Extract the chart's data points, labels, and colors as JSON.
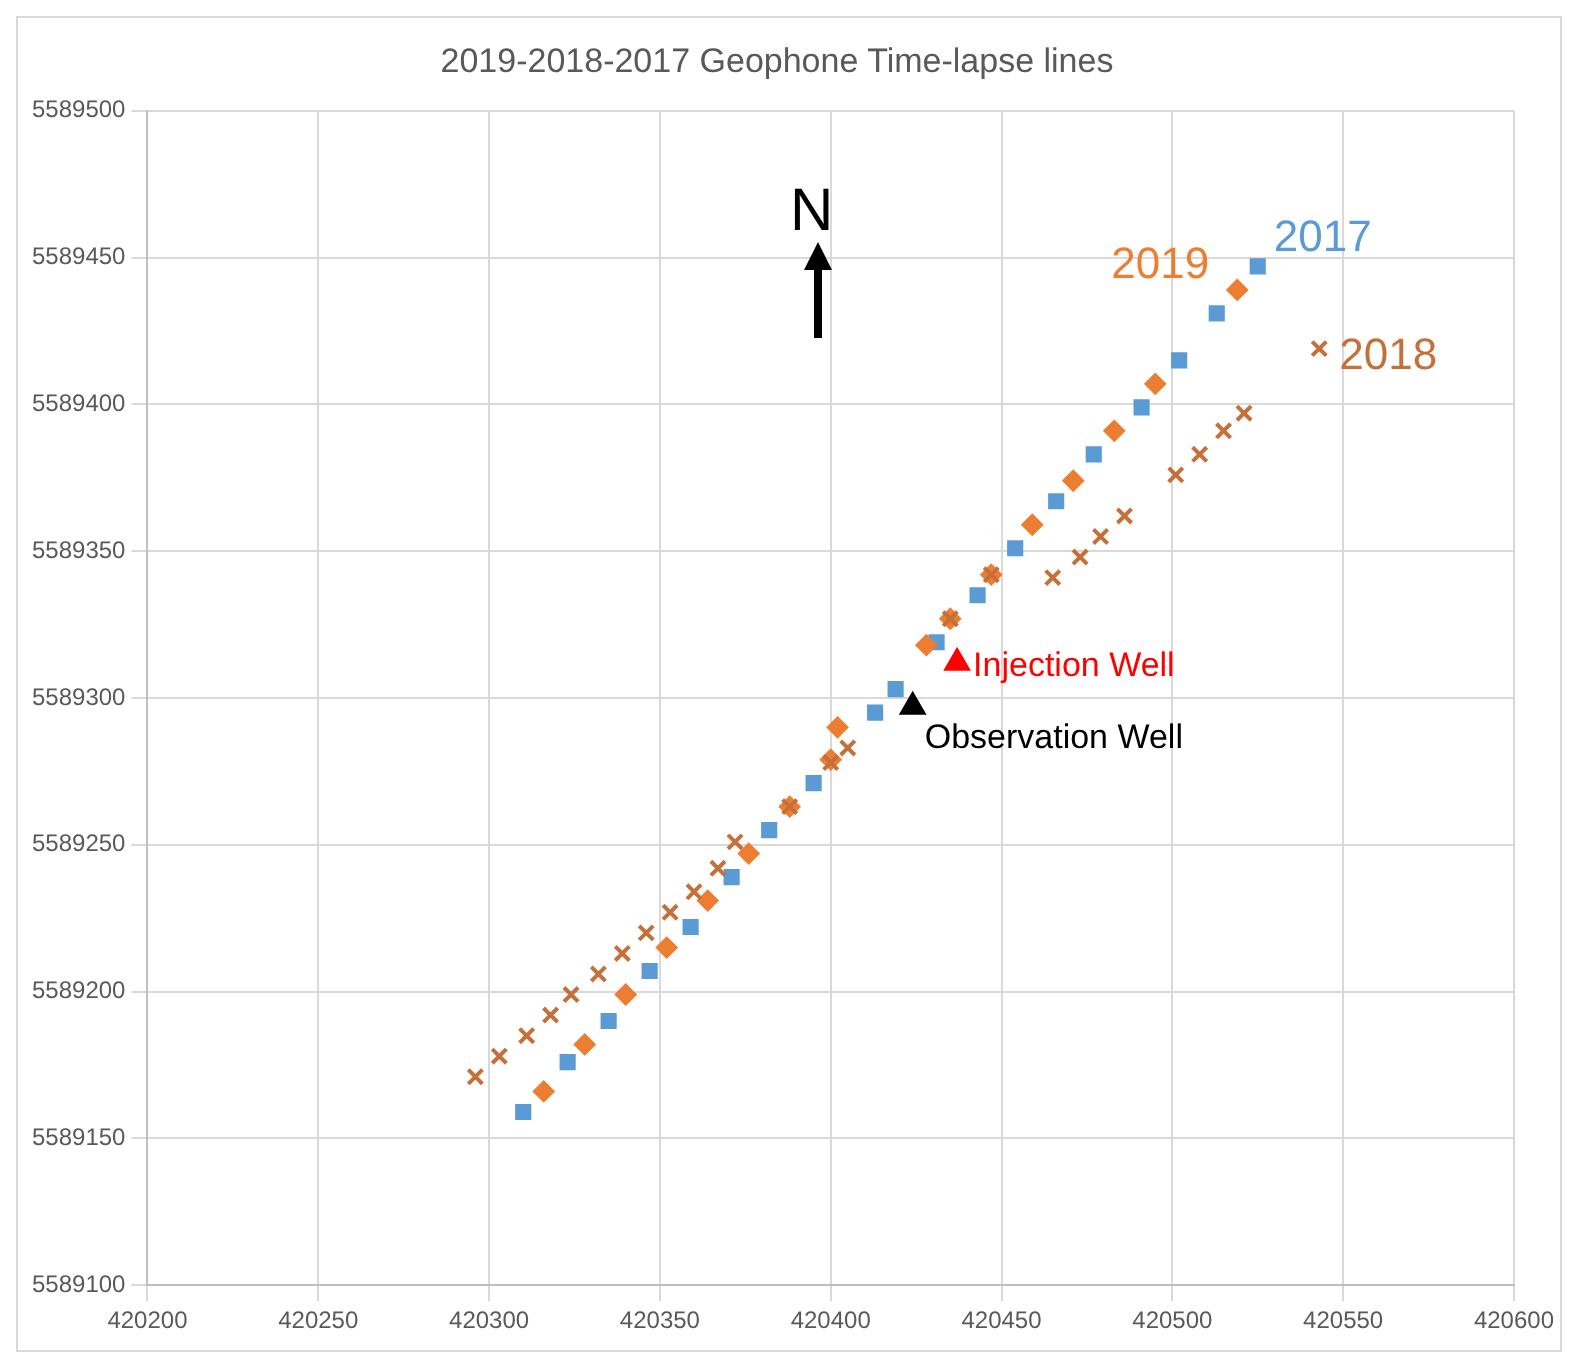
{
  "chart_data": {
    "type": "scatter",
    "title": "2019-2018-2017 Geophone Time-lapse lines",
    "xlim": [
      420200,
      420600
    ],
    "xticks": [
      420200,
      420250,
      420300,
      420350,
      420400,
      420450,
      420500,
      420550,
      420600
    ],
    "ylim": [
      5589100,
      5589500
    ],
    "yticks": [
      5589100,
      5589150,
      5589200,
      5589250,
      5589300,
      5589350,
      5589400,
      5589450,
      5589500
    ],
    "grid": true,
    "legend": false,
    "annotations": [
      "N"
    ],
    "series": [
      {
        "name": "2017",
        "color": "#5b9bd5",
        "marker": "square",
        "x": [
          420525,
          420513,
          420502,
          420491,
          420477,
          420466,
          420454,
          420443,
          420431,
          420419,
          420413,
          420395,
          420382,
          420371,
          420359,
          420347,
          420335,
          420323,
          420310
        ],
        "values": [
          5589447,
          5589431,
          5589415,
          5589399,
          5589383,
          5589367,
          5589351,
          5589335,
          5589319,
          5589303,
          5589295,
          5589271,
          5589255,
          5589239,
          5589222,
          5589207,
          5589190,
          5589176,
          5589159
        ]
      },
      {
        "name": "2019",
        "color": "#ed7d31",
        "marker": "diamond",
        "x": [
          420519,
          420495,
          420483,
          420471,
          420459,
          420447,
          420435,
          420428,
          420402,
          420400,
          420388,
          420376,
          420364,
          420352,
          420340,
          420328,
          420316
        ],
        "values": [
          5589439,
          5589407,
          5589391,
          5589374,
          5589359,
          5589342,
          5589327,
          5589318,
          5589290,
          5589279,
          5589263,
          5589247,
          5589231,
          5589215,
          5589199,
          5589182,
          5589166
        ]
      },
      {
        "name": "2018",
        "color": "#c5703a",
        "marker": "cross",
        "x": [
          420543,
          420521,
          420515,
          420508,
          420501,
          420486,
          420479,
          420473,
          420465,
          420447,
          420435,
          420405,
          420400,
          420388,
          420372,
          420367,
          420360,
          420353,
          420346,
          420339,
          420332,
          420324,
          420318,
          420311,
          420303,
          420296
        ],
        "values": [
          5589419,
          5589397,
          5589391,
          5589383,
          5589376,
          5589362,
          5589355,
          5589348,
          5589341,
          5589342,
          5589327,
          5589283,
          5589278,
          5589263,
          5589251,
          5589242,
          5589234,
          5589227,
          5589220,
          5589213,
          5589206,
          5589199,
          5589192,
          5589185,
          5589178,
          5589171
        ]
      },
      {
        "name": "Injection Well",
        "color": "#ff0000",
        "marker": "triangle",
        "x": [
          420437
        ],
        "values": [
          5589312
        ]
      },
      {
        "name": "Observation Well",
        "color": "#000000",
        "marker": "triangle",
        "x": [
          420424
        ],
        "values": [
          5589297
        ]
      }
    ]
  }
}
